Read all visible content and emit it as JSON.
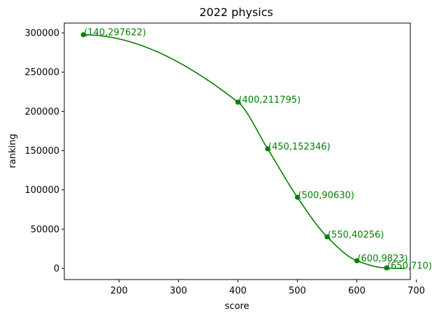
{
  "chart_data": {
    "type": "line",
    "title": "2022 physics",
    "xlabel": "score",
    "ylabel": "ranking",
    "xlim": [
      108,
      690
    ],
    "ylim": [
      -14176,
      312508
    ],
    "xticks": [
      200,
      300,
      400,
      500,
      600,
      700
    ],
    "yticks": [
      0,
      50000,
      100000,
      150000,
      200000,
      250000,
      300000
    ],
    "grid": false,
    "series_color": "#008000",
    "points": [
      {
        "x": 140,
        "y": 297622,
        "label": "(140,297622)"
      },
      {
        "x": 400,
        "y": 211795,
        "label": "(400,211795)"
      },
      {
        "x": 450,
        "y": 152346,
        "label": "(450,152346)"
      },
      {
        "x": 500,
        "y": 90630,
        "label": "(500,90630)"
      },
      {
        "x": 550,
        "y": 40256,
        "label": "(550,40256)"
      },
      {
        "x": 600,
        "y": 9823,
        "label": "(600,9823)"
      },
      {
        "x": 650,
        "y": 710,
        "label": "(650,710)"
      }
    ],
    "curve_end_x": 680
  }
}
